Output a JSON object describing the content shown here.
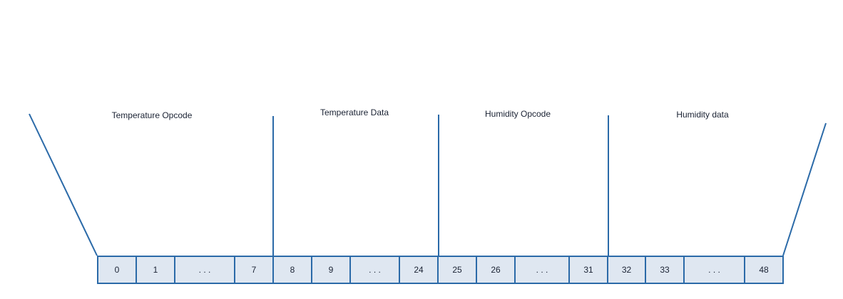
{
  "sections": [
    {
      "label": "Temperature Opcode"
    },
    {
      "label": "Temperature Data"
    },
    {
      "label": "Humidity Opcode"
    },
    {
      "label": "Humidity data"
    }
  ],
  "cells": [
    {
      "text": "0"
    },
    {
      "text": "1"
    },
    {
      "text": ".   .   ."
    },
    {
      "text": "7"
    },
    {
      "text": "8"
    },
    {
      "text": "9"
    },
    {
      "text": ". . ."
    },
    {
      "text": "24"
    },
    {
      "text": "25"
    },
    {
      "text": "26"
    },
    {
      "text": ".   .   ."
    },
    {
      "text": "31"
    },
    {
      "text": "32"
    },
    {
      "text": "33"
    },
    {
      "text": ".   .   ."
    },
    {
      "text": "48"
    }
  ],
  "colors": {
    "line": "#2b6aa8",
    "cell_fill": "#dfe7f1",
    "text": "#1a2233"
  }
}
